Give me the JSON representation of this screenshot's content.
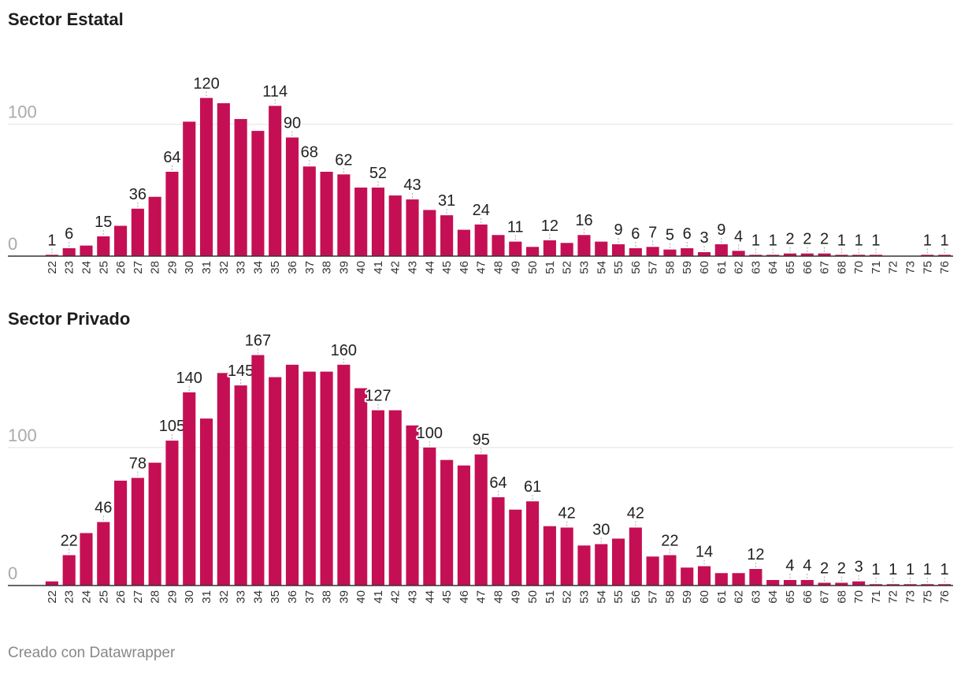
{
  "footer": "Creado con Datawrapper",
  "chart_data": [
    {
      "type": "bar",
      "title": "Sector Estatal",
      "categories": [
        "22",
        "23",
        "24",
        "25",
        "26",
        "27",
        "28",
        "29",
        "30",
        "31",
        "32",
        "33",
        "34",
        "35",
        "36",
        "37",
        "38",
        "39",
        "40",
        "41",
        "42",
        "43",
        "44",
        "45",
        "46",
        "47",
        "48",
        "49",
        "50",
        "51",
        "52",
        "53",
        "54",
        "55",
        "56",
        "57",
        "58",
        "59",
        "60",
        "61",
        "62",
        "63",
        "64",
        "65",
        "66",
        "67",
        "68",
        "70",
        "71",
        "72",
        "73",
        "75",
        "76"
      ],
      "values": [
        1,
        6,
        8,
        15,
        23,
        36,
        45,
        64,
        102,
        120,
        116,
        104,
        95,
        114,
        90,
        68,
        64,
        62,
        52,
        52,
        46,
        43,
        35,
        31,
        20,
        24,
        16,
        11,
        7,
        12,
        10,
        16,
        11,
        9,
        6,
        7,
        5,
        6,
        3,
        9,
        4,
        1,
        1,
        2,
        2,
        2,
        1,
        1,
        1,
        0,
        0,
        1,
        1
      ],
      "labels": {
        "22": "1",
        "23": "6",
        "25": "15",
        "27": "36",
        "29": "64",
        "31": "120",
        "35": "114",
        "36": "90",
        "37": "68",
        "39": "62",
        "41": "52",
        "43": "43",
        "45": "31",
        "47": "24",
        "49": "11",
        "51": "12",
        "53": "16",
        "55": "9",
        "56": "6",
        "57": "7",
        "58": "5",
        "59": "6",
        "60": "3",
        "61": "9",
        "62": "4",
        "63": "1",
        "64": "1",
        "65": "2",
        "66": "2",
        "67": "2",
        "68": "1",
        "70": "1",
        "71": "1",
        "75": "1",
        "76": "1"
      },
      "yticks": [
        0,
        100
      ],
      "ylim": [
        0,
        135
      ],
      "color": "#c50f54"
    },
    {
      "type": "bar",
      "title": "Sector Privado",
      "categories": [
        "22",
        "23",
        "24",
        "25",
        "26",
        "27",
        "28",
        "29",
        "30",
        "31",
        "32",
        "33",
        "34",
        "35",
        "36",
        "37",
        "38",
        "39",
        "40",
        "41",
        "42",
        "43",
        "44",
        "45",
        "46",
        "47",
        "48",
        "49",
        "50",
        "51",
        "52",
        "53",
        "54",
        "55",
        "56",
        "57",
        "58",
        "59",
        "60",
        "61",
        "62",
        "63",
        "64",
        "65",
        "66",
        "67",
        "68",
        "70",
        "71",
        "72",
        "73",
        "75",
        "76"
      ],
      "values": [
        3,
        22,
        38,
        46,
        76,
        78,
        89,
        105,
        140,
        121,
        154,
        145,
        167,
        151,
        160,
        155,
        155,
        160,
        143,
        127,
        127,
        116,
        100,
        91,
        87,
        95,
        64,
        55,
        61,
        43,
        42,
        29,
        30,
        34,
        42,
        21,
        22,
        13,
        14,
        9,
        9,
        12,
        4,
        4,
        4,
        2,
        2,
        3,
        1,
        1,
        1,
        1,
        1
      ],
      "labels": {
        "23": "22",
        "25": "46",
        "27": "78",
        "29": "105",
        "30": "140",
        "33": "145",
        "34": "167",
        "39": "160",
        "41": "127",
        "44": "100",
        "47": "95",
        "48": "64",
        "50": "61",
        "52": "42",
        "54": "30",
        "56": "42",
        "58": "22",
        "60": "14",
        "63": "12",
        "65": "4",
        "66": "4",
        "67": "2",
        "68": "2",
        "70": "3",
        "71": "1",
        "72": "1",
        "73": "1",
        "75": "1",
        "76": "1"
      },
      "yticks": [
        0,
        100
      ],
      "ylim": [
        0,
        180
      ],
      "color": "#c50f54"
    }
  ]
}
